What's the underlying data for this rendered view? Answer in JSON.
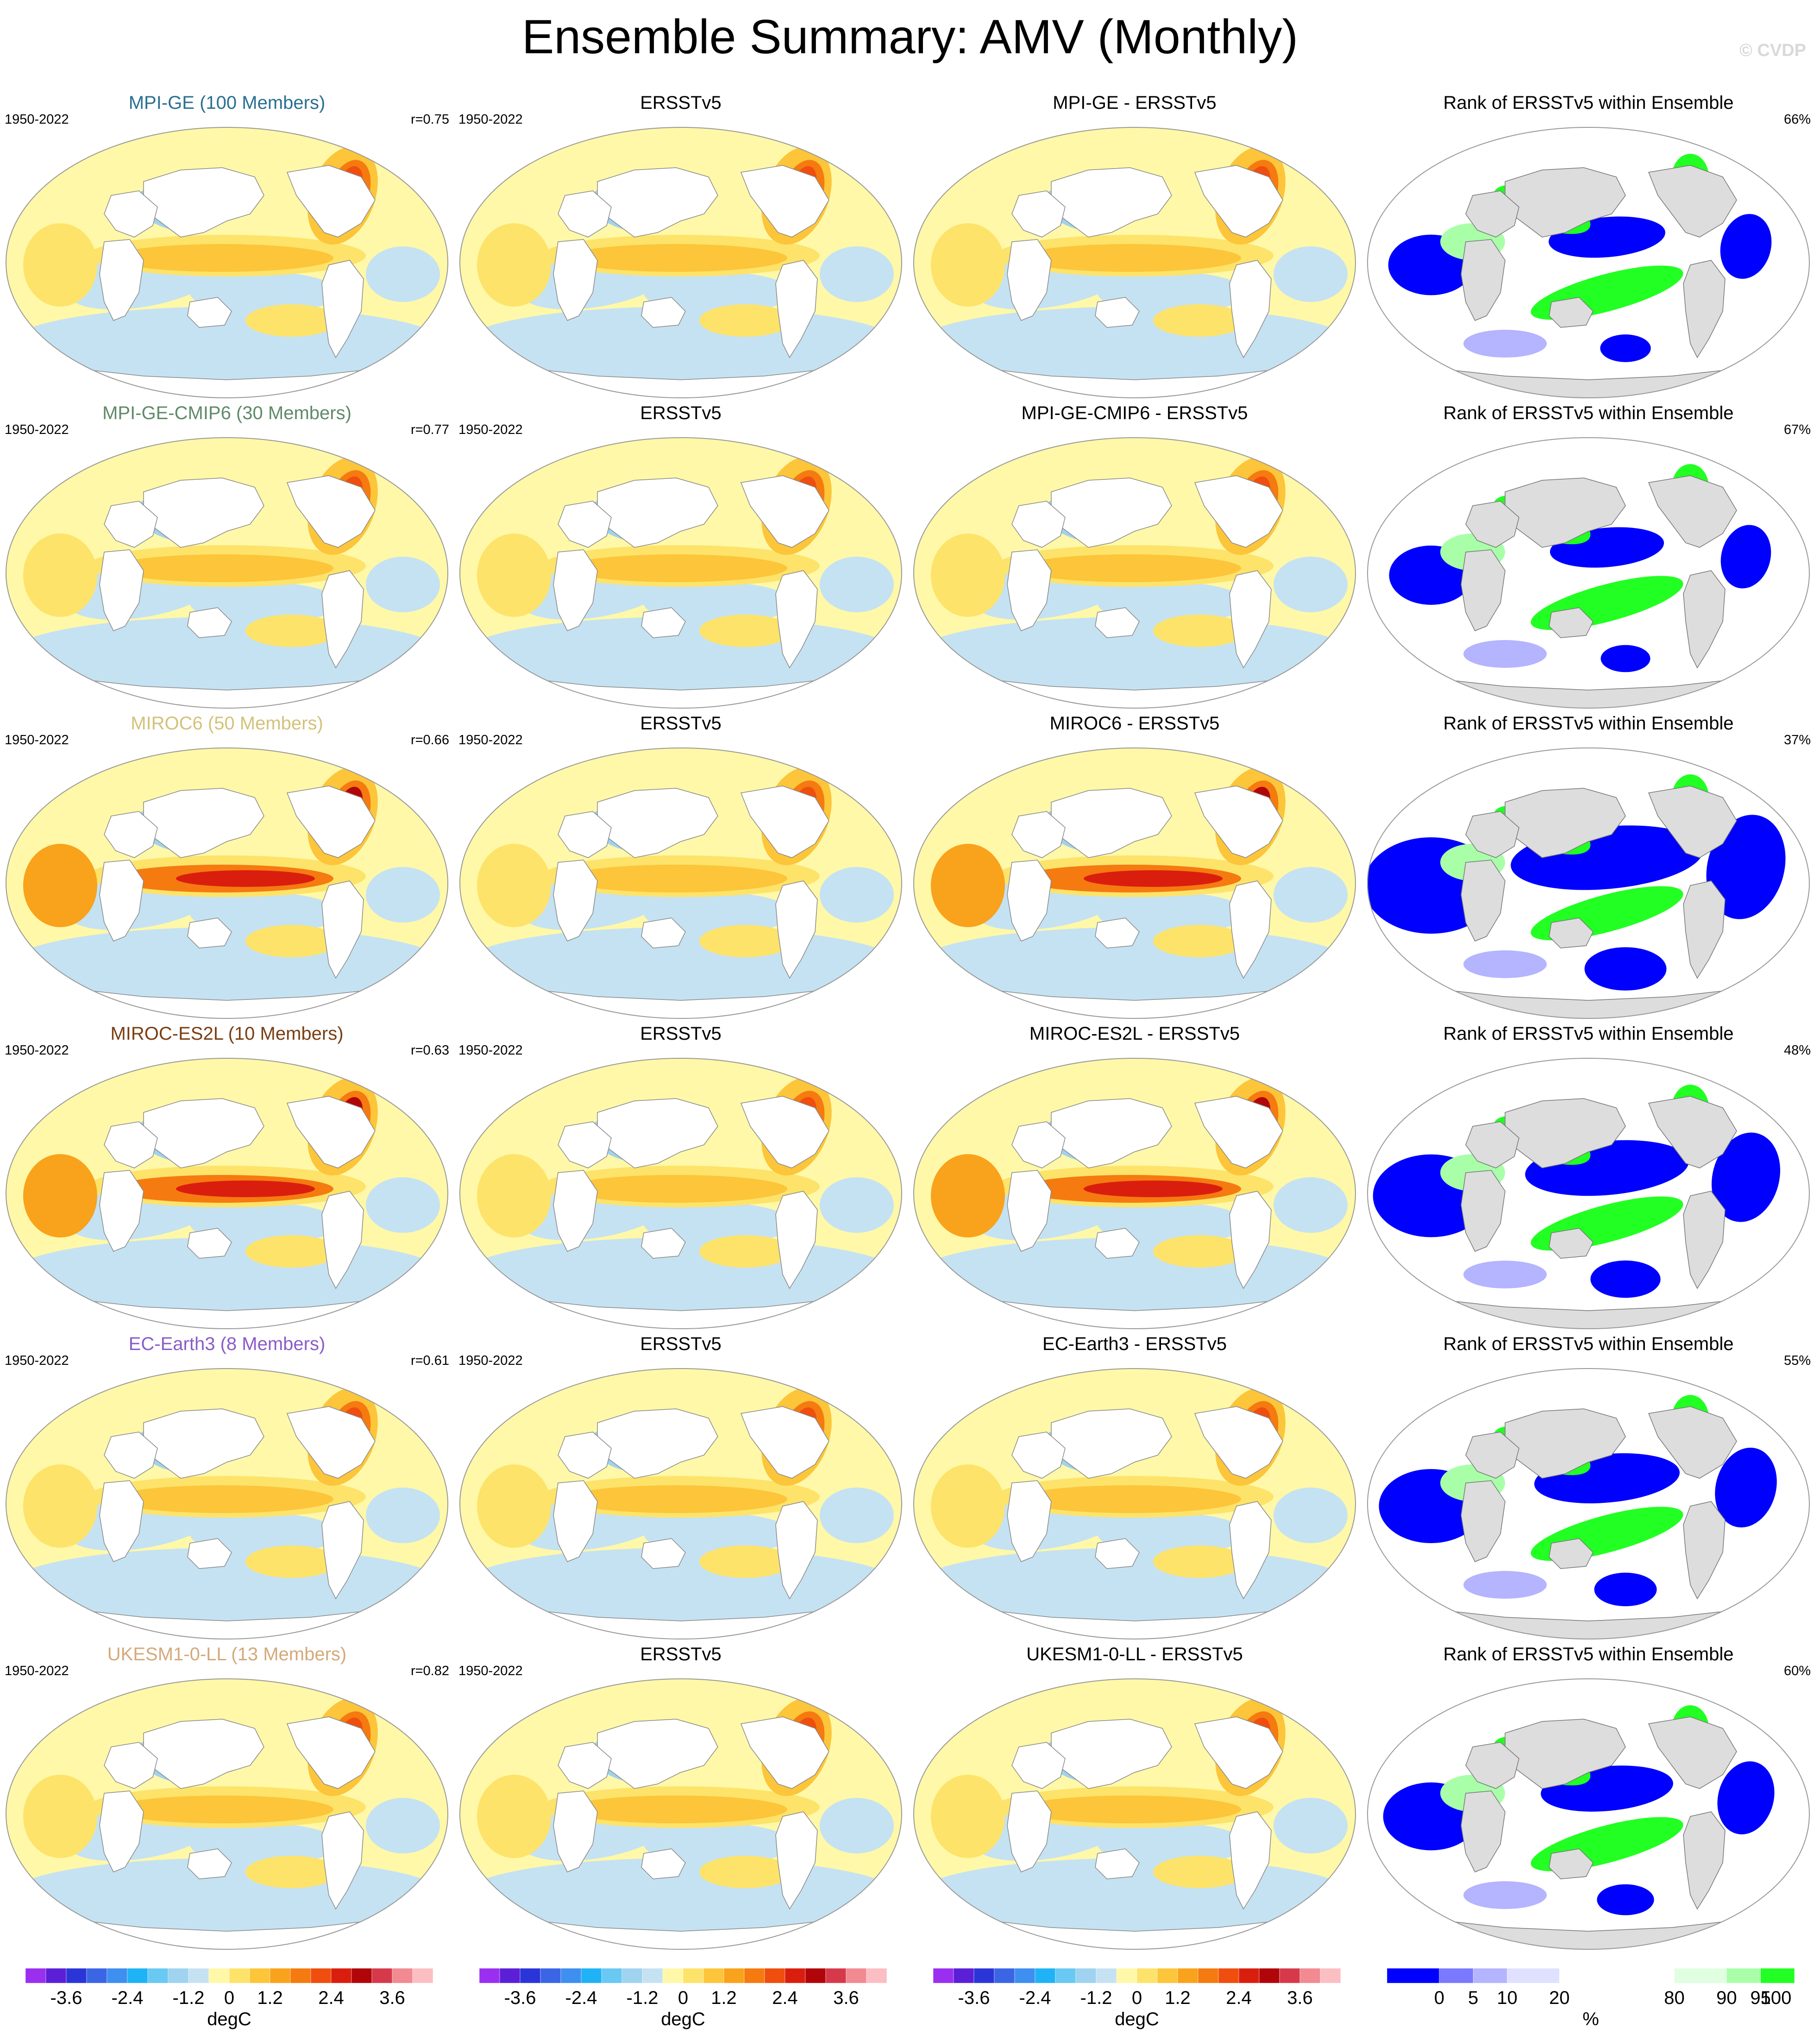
{
  "header": {
    "title": "Ensemble Summary: AMV (Monthly)",
    "watermark": "© CVDP"
  },
  "period": "1950-2022",
  "rows": [
    {
      "model": "MPI-GE (100 Members)",
      "model_color": "#2a7090",
      "r": "r=0.75",
      "diff_title": "MPI-GE - ERSSTv5",
      "rank_title": "Rank of ERSSTv5 within Ensemble",
      "rank_pct": "66%"
    },
    {
      "model": "MPI-GE-CMIP6 (30 Members)",
      "model_color": "#5f8a68",
      "r": "r=0.77",
      "diff_title": "MPI-GE-CMIP6 - ERSSTv5",
      "rank_title": "Rank of ERSSTv5 within Ensemble",
      "rank_pct": "67%"
    },
    {
      "model": "MIROC6 (50 Members)",
      "model_color": "#d3c27a",
      "r": "r=0.66",
      "diff_title": "MIROC6 - ERSSTv5",
      "rank_title": "Rank of ERSSTv5 within Ensemble",
      "rank_pct": "37%"
    },
    {
      "model": "MIROC-ES2L (10 Members)",
      "model_color": "#7a3e12",
      "r": "r=0.63",
      "diff_title": "MIROC-ES2L - ERSSTv5",
      "rank_title": "Rank of ERSSTv5 within Ensemble",
      "rank_pct": "48%"
    },
    {
      "model": "EC-Earth3 (8 Members)",
      "model_color": "#8a5cc8",
      "r": "r=0.61",
      "diff_title": "EC-Earth3 - ERSSTv5",
      "rank_title": "Rank of ERSSTv5 within Ensemble",
      "rank_pct": "55%"
    },
    {
      "model": "UKESM1-0-LL (13 Members)",
      "model_color": "#d4a97a",
      "r": "r=0.82",
      "diff_title": "UKESM1-0-LL - ERSSTv5",
      "rank_title": "Rank of ERSSTv5 within Ensemble",
      "rank_pct": "60%"
    }
  ],
  "obs_title": "ERSSTv5",
  "colorbars": {
    "sst": {
      "ticks": [
        "-3.6",
        "-2.4",
        "-1.2",
        "0",
        "1.2",
        "2.4",
        "3.6"
      ],
      "unit": "degC",
      "colors": [
        "#9a2ff0",
        "#5a1fd6",
        "#2a35d8",
        "#3a66e6",
        "#3f8ff0",
        "#1fb3f5",
        "#69c9f3",
        "#9fd3ef",
        "#c5e2f2",
        "#fff8a8",
        "#fde36a",
        "#fcc53a",
        "#f9a21c",
        "#f57a10",
        "#ef4e0e",
        "#da1e0e",
        "#b0060a",
        "#d63a4a",
        "#f28a92",
        "#fbbfc3"
      ]
    },
    "rank": {
      "ticks": [
        "0",
        "5",
        "10",
        "20",
        "80",
        "90",
        "95",
        "100"
      ],
      "unit": "%",
      "colors": [
        "#0000ff",
        "#7a7aff",
        "#b4b4ff",
        "#e0e0ff",
        "#ffffff",
        "#e0ffe0",
        "#a8ffa8",
        "#22ff22"
      ]
    }
  },
  "chart_data": {
    "type": "heatmap",
    "projection": "Robinson (global)",
    "variable": "AMV sea surface temperature pattern (degC)",
    "columns": [
      "model ensemble mean",
      "ERSSTv5",
      "model - ERSSTv5",
      "rank of ERSSTv5 within ensemble (%)"
    ],
    "models": [
      "MPI-GE",
      "MPI-GE-CMIP6",
      "MIROC6",
      "MIROC-ES2L",
      "EC-Earth3",
      "UKESM1-0-LL"
    ],
    "pattern_correlation": [
      0.75,
      0.77,
      0.66,
      0.63,
      0.61,
      0.82
    ],
    "rank_percent_within_10_90": [
      66,
      67,
      37,
      48,
      55,
      60
    ],
    "sst_color_levels": [
      -3.6,
      -3.2,
      -2.8,
      -2.4,
      -2.0,
      -1.6,
      -1.2,
      -0.8,
      -0.4,
      0,
      0.4,
      0.8,
      1.2,
      1.6,
      2.0,
      2.4,
      2.8,
      3.2,
      3.6
    ],
    "rank_color_levels": [
      0,
      5,
      10,
      20,
      80,
      90,
      95,
      100
    ]
  }
}
